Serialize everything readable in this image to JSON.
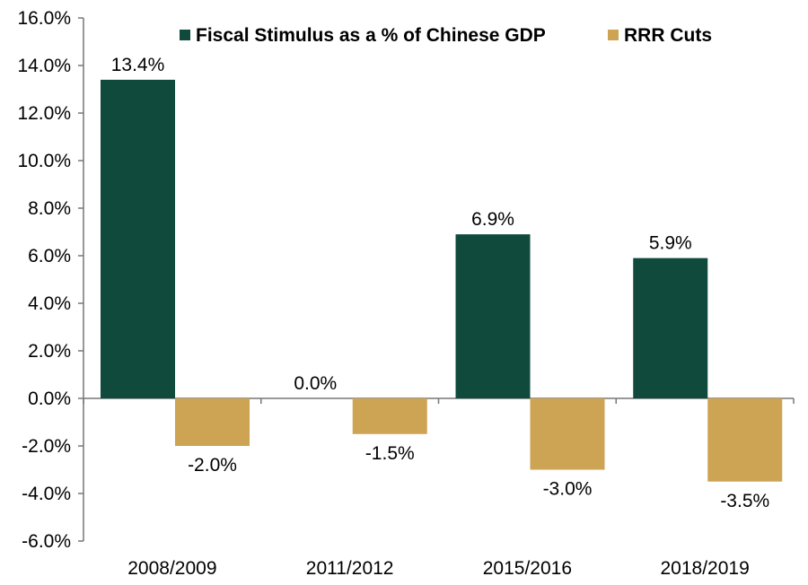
{
  "chart_data": {
    "type": "bar",
    "categories": [
      "2008/2009",
      "2011/2012",
      "2015/2016",
      "2018/2019"
    ],
    "series": [
      {
        "name": "Fiscal Stimulus as a % of Chinese GDP",
        "color": "#0f4a3c",
        "values": [
          13.4,
          0.0,
          6.9,
          5.9
        ],
        "labels": [
          "13.4%",
          "0.0%",
          "6.9%",
          "5.9%"
        ]
      },
      {
        "name": "RRR Cuts",
        "color": "#cda354",
        "values": [
          -2.0,
          -1.5,
          -3.0,
          -3.5
        ],
        "labels": [
          "-2.0%",
          "-1.5%",
          "-3.0%",
          "-3.5%"
        ]
      }
    ],
    "ylim": [
      -6.0,
      16.0
    ],
    "ytick_labels": [
      "16.0%",
      "14.0%",
      "12.0%",
      "10.0%",
      "8.0%",
      "6.0%",
      "4.0%",
      "2.0%",
      "0.0%",
      "-2.0%",
      "-4.0%",
      "-6.0%"
    ],
    "ytick_values": [
      16,
      14,
      12,
      10,
      8,
      6,
      4,
      2,
      0,
      -2,
      -4,
      -6
    ],
    "title": "",
    "xlabel": "",
    "ylabel": "",
    "legend_position": "top",
    "grid": false
  }
}
